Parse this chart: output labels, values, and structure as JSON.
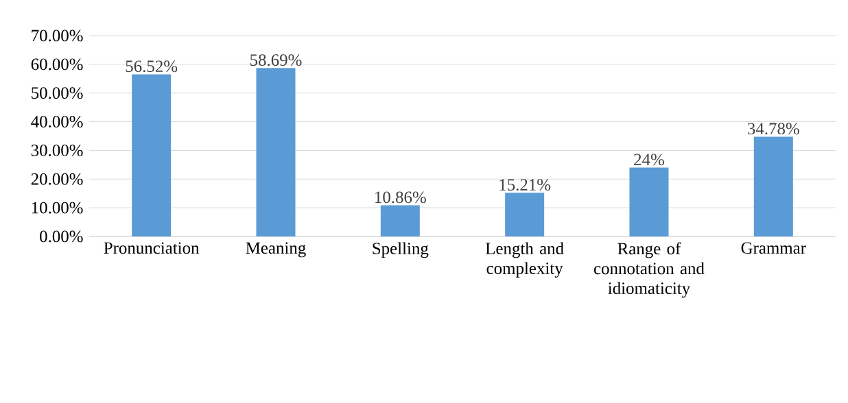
{
  "chart_data": {
    "type": "bar",
    "categories": [
      "Pronunciation",
      "Meaning",
      "Spelling",
      "Length and complexity",
      "Range of connotation and idiomaticity",
      "Grammar"
    ],
    "values": [
      56.52,
      58.69,
      10.86,
      15.21,
      24,
      34.78
    ],
    "value_labels": [
      "56.52%",
      "58.69%",
      "10.86%",
      "15.21%",
      "24%",
      "34.78%"
    ],
    "color": "#5b9bd5",
    "ylim": [
      0,
      70
    ],
    "yticks": [
      {
        "value": 0,
        "label": "0.00%"
      },
      {
        "value": 10,
        "label": "10.00%"
      },
      {
        "value": 20,
        "label": "20.00%"
      },
      {
        "value": 30,
        "label": "30.00%"
      },
      {
        "value": 40,
        "label": "40.00%"
      },
      {
        "value": 50,
        "label": "50.00%"
      },
      {
        "value": 60,
        "label": "60.00%"
      },
      {
        "value": 70,
        "label": "70.00%"
      }
    ],
    "grid": "y"
  }
}
